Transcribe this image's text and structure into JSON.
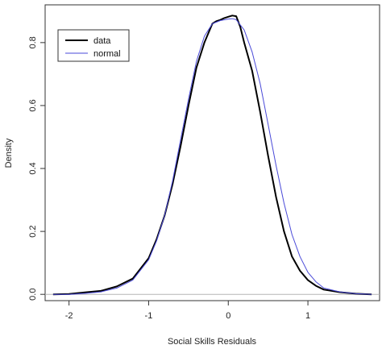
{
  "chart_data": {
    "type": "line",
    "title": "",
    "xlabel": "Social Skills Residuals",
    "ylabel": "Density",
    "xlim": [
      -2.3,
      1.9
    ],
    "ylim": [
      -0.02,
      0.92
    ],
    "x_ticks": [
      -2,
      -1,
      0,
      1
    ],
    "x_tick_labels": [
      "-2",
      "-1",
      "0",
      "1"
    ],
    "y_ticks": [
      0.0,
      0.2,
      0.4,
      0.6,
      0.8
    ],
    "y_tick_labels": [
      "0.0",
      "0.2",
      "0.4",
      "0.6",
      "0.8"
    ],
    "baseline": 0,
    "grid": false,
    "legend": {
      "position": "top-left",
      "entries": [
        "data",
        "normal"
      ]
    },
    "series": [
      {
        "name": "data",
        "color": "#000000",
        "x": [
          -2.2,
          -2.0,
          -1.8,
          -1.6,
          -1.4,
          -1.2,
          -1.0,
          -0.9,
          -0.8,
          -0.7,
          -0.6,
          -0.5,
          -0.4,
          -0.3,
          -0.2,
          -0.15,
          -0.1,
          -0.05,
          0.0,
          0.05,
          0.1,
          0.15,
          0.2,
          0.3,
          0.4,
          0.5,
          0.6,
          0.7,
          0.8,
          0.9,
          1.0,
          1.1,
          1.2,
          1.4,
          1.6,
          1.8
        ],
        "y": [
          0.0,
          0.001,
          0.006,
          0.011,
          0.025,
          0.05,
          0.115,
          0.175,
          0.25,
          0.35,
          0.47,
          0.6,
          0.72,
          0.8,
          0.86,
          0.868,
          0.872,
          0.878,
          0.882,
          0.886,
          0.884,
          0.85,
          0.8,
          0.71,
          0.58,
          0.44,
          0.31,
          0.2,
          0.12,
          0.075,
          0.045,
          0.027,
          0.015,
          0.007,
          0.002,
          0.0
        ]
      },
      {
        "name": "normal",
        "color": "#4a4ad8",
        "x": [
          -2.2,
          -2.0,
          -1.8,
          -1.6,
          -1.4,
          -1.2,
          -1.0,
          -0.9,
          -0.8,
          -0.7,
          -0.6,
          -0.5,
          -0.4,
          -0.3,
          -0.2,
          -0.1,
          0.0,
          0.05,
          0.1,
          0.2,
          0.3,
          0.4,
          0.5,
          0.6,
          0.7,
          0.8,
          0.9,
          1.0,
          1.1,
          1.2,
          1.4,
          1.6,
          1.8
        ],
        "y": [
          0.0,
          0.0,
          0.003,
          0.008,
          0.02,
          0.045,
          0.11,
          0.17,
          0.25,
          0.36,
          0.49,
          0.62,
          0.74,
          0.82,
          0.86,
          0.87,
          0.875,
          0.876,
          0.873,
          0.84,
          0.77,
          0.67,
          0.54,
          0.41,
          0.29,
          0.19,
          0.12,
          0.07,
          0.04,
          0.02,
          0.008,
          0.002,
          0.0
        ]
      }
    ]
  }
}
